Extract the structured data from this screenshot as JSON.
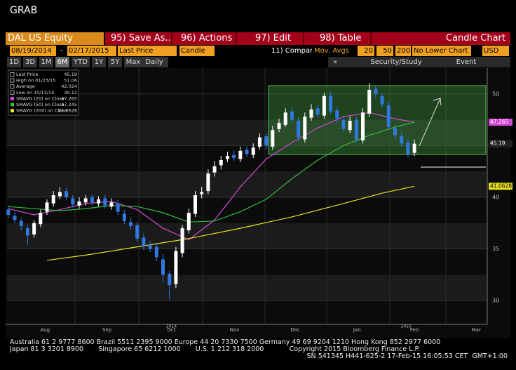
{
  "header": {
    "title": "GRAB"
  },
  "toolbar": {
    "security": "DAL US Equity",
    "menu": [
      "95) Save As...",
      "96) Actions",
      "97) Edit",
      "98) Table"
    ],
    "chart_label": "Candle Chart"
  },
  "settings": {
    "start": "08/19/2014",
    "dash": "-",
    "end": "02/17/2015",
    "field": "Last Price",
    "style": "Candle",
    "compare": "11) Compare",
    "mov_avgs": "Mov. Avgs",
    "periods": [
      20,
      50,
      200
    ],
    "lower": "No Lower Chart",
    "currency": "USD"
  },
  "ranges": {
    "buttons": [
      "1D",
      "3D",
      "1M",
      "6M",
      "YTD",
      "1Y",
      "5Y",
      "Max"
    ],
    "frequency": "Daily",
    "collapse": "«",
    "study": "Security/Study",
    "event": "Event"
  },
  "chart_data": {
    "type": "candlestick",
    "up_color": "#ffffff",
    "down_color": "#2f78e0",
    "open": [
      38.8,
      38.2,
      37.7,
      37.0,
      36.4,
      37.4,
      38.6,
      39.4,
      40.1,
      40.6,
      39.9,
      39.2,
      39.5,
      40.0,
      39.4,
      39.9,
      39.1,
      39.4,
      38.4,
      37.6,
      37.3,
      36.1,
      35.4,
      35.2,
      34.0,
      32.6,
      31.6,
      34.6,
      36.8,
      38.4,
      40.3,
      40.6,
      42.4,
      43.1,
      43.7,
      44.1,
      43.7,
      44.6,
      44.1,
      44.9,
      45.9,
      44.9,
      46.6,
      47.0,
      48.3,
      47.4,
      45.6,
      47.7,
      48.6,
      47.9,
      49.8,
      48.4,
      47.5,
      46.5,
      47.5,
      45.5,
      48.1,
      50.5,
      49.8,
      48.9,
      46.7,
      45.9,
      45.3,
      44.3
    ],
    "high": [
      39.2,
      38.6,
      38.0,
      37.3,
      37.8,
      38.8,
      39.8,
      40.6,
      41.0,
      40.9,
      40.2,
      40.0,
      40.2,
      40.3,
      40.1,
      40.2,
      39.9,
      39.8,
      38.8,
      38.0,
      37.6,
      36.5,
      35.8,
      35.6,
      34.5,
      32.9,
      35.2,
      37.3,
      38.9,
      40.6,
      41.0,
      42.7,
      43.5,
      44.0,
      44.4,
      44.5,
      44.9,
      44.9,
      45.2,
      46.2,
      46.2,
      46.9,
      47.6,
      48.6,
      48.7,
      47.8,
      48.2,
      49.0,
      48.9,
      50.1,
      50.2,
      48.7,
      47.9,
      47.8,
      47.8,
      48.6,
      51.06,
      50.8,
      50.1,
      49.2,
      47.0,
      46.3,
      45.6,
      45.6
    ],
    "low": [
      38.0,
      37.5,
      36.8,
      35.4,
      36.1,
      37.1,
      38.3,
      39.1,
      39.8,
      39.7,
      39.0,
      38.9,
      39.2,
      39.2,
      39.1,
      38.9,
      38.8,
      38.3,
      37.4,
      36.9,
      35.7,
      34.9,
      34.7,
      33.8,
      31.8,
      30.12,
      31.2,
      34.2,
      36.5,
      38.1,
      39.9,
      40.3,
      42.0,
      42.7,
      43.4,
      43.5,
      43.4,
      43.9,
      43.8,
      44.6,
      44.6,
      44.6,
      46.3,
      46.8,
      47.2,
      45.4,
      45.3,
      47.4,
      47.7,
      47.6,
      48.0,
      47.2,
      46.3,
      46.2,
      45.3,
      45.2,
      47.8,
      49.6,
      48.7,
      46.5,
      45.6,
      44.9,
      43.9,
      44.0
    ],
    "close": [
      38.3,
      37.8,
      37.2,
      36.3,
      37.5,
      38.5,
      39.5,
      40.2,
      40.5,
      40.0,
      39.3,
      39.6,
      39.9,
      39.5,
      39.8,
      39.2,
      39.5,
      38.6,
      37.7,
      37.2,
      36.0,
      35.3,
      35.0,
      34.2,
      32.5,
      31.5,
      34.8,
      37.0,
      38.5,
      40.2,
      40.5,
      42.3,
      43.0,
      43.6,
      44.0,
      43.8,
      44.5,
      44.2,
      44.8,
      45.8,
      45.0,
      46.5,
      47.2,
      48.2,
      47.5,
      45.8,
      47.8,
      48.5,
      48.0,
      49.8,
      48.3,
      47.6,
      46.6,
      47.4,
      45.6,
      48.2,
      50.4,
      50.0,
      49.0,
      46.8,
      46.0,
      45.2,
      44.2,
      45.19
    ],
    "series": [
      {
        "name": "SMAVG (20) on Close",
        "color": "#d548d5",
        "x": [
          0,
          4,
          8,
          12,
          16,
          20,
          24,
          28,
          32,
          36,
          40,
          44,
          48,
          52,
          56,
          60,
          63
        ],
        "values": [
          38.9,
          38.3,
          38.8,
          39.4,
          39.6,
          38.8,
          37.0,
          35.9,
          37.8,
          41.0,
          43.7,
          45.3,
          46.7,
          47.8,
          48.2,
          47.6,
          47.265
        ]
      },
      {
        "name": "SMAVG (50) on Close",
        "color": "#2fbf3a",
        "x": [
          0,
          4,
          8,
          12,
          16,
          20,
          24,
          28,
          32,
          36,
          40,
          44,
          48,
          52,
          56,
          60,
          63
        ],
        "values": [
          39.1,
          38.9,
          38.7,
          38.9,
          39.2,
          39.1,
          38.5,
          37.6,
          37.7,
          38.6,
          39.8,
          41.8,
          43.6,
          45.0,
          46.0,
          46.8,
          47.245
        ]
      },
      {
        "name": "SMAVG (200) on Close",
        "color": "#e6e020",
        "x": [
          6,
          12,
          20,
          28,
          36,
          44,
          52,
          58,
          63
        ],
        "values": [
          33.9,
          34.4,
          35.2,
          36.0,
          37.0,
          38.1,
          39.4,
          40.4,
          41.0628
        ]
      }
    ],
    "legend_labels": [
      "Last Price",
      "High on 01/23/15",
      "Average",
      "Low on 10/13/14"
    ],
    "average": 42.024,
    "xlim": [
      -0.2,
      74.3
    ],
    "xticks": [
      {
        "value": 5.7,
        "label": "Aug"
      },
      {
        "value": 15.3,
        "label": "Sep"
      },
      {
        "value": 25.3,
        "label": "Oct"
      },
      {
        "value": 35.1,
        "label": "Nov"
      },
      {
        "value": 44.5,
        "label": "Dec"
      },
      {
        "value": 54.1,
        "label": "Jan"
      },
      {
        "value": 63.0,
        "label": "Feb"
      },
      {
        "value": 72.6,
        "label": "Mar"
      }
    ],
    "year_labels": [
      {
        "value": 25.3,
        "label": "2014"
      },
      {
        "value": 61.7,
        "label": "2015"
      }
    ],
    "ylim": [
      27.7,
      52.5
    ],
    "yticks": [
      30,
      35,
      40,
      45,
      50
    ],
    "grid": true
  },
  "footer": {
    "lines": [
      "Australia 61 2 9777 8600 Brazil 5511 2395 9000 Europe 44 20 7330 7500 Germany 49 69 9204 1210 Hong Kong 852 2977 6000",
      "Japan 81 3 3201 8900       Singapore 65 6212 1000       U.S. 1 212 318 2000            Copyright 2015 Bloomberg Finance L.P.",
      "SN 541345 H441-625-2 17-Feb-15 16:05:53 CET  GMT+1:00"
    ]
  }
}
